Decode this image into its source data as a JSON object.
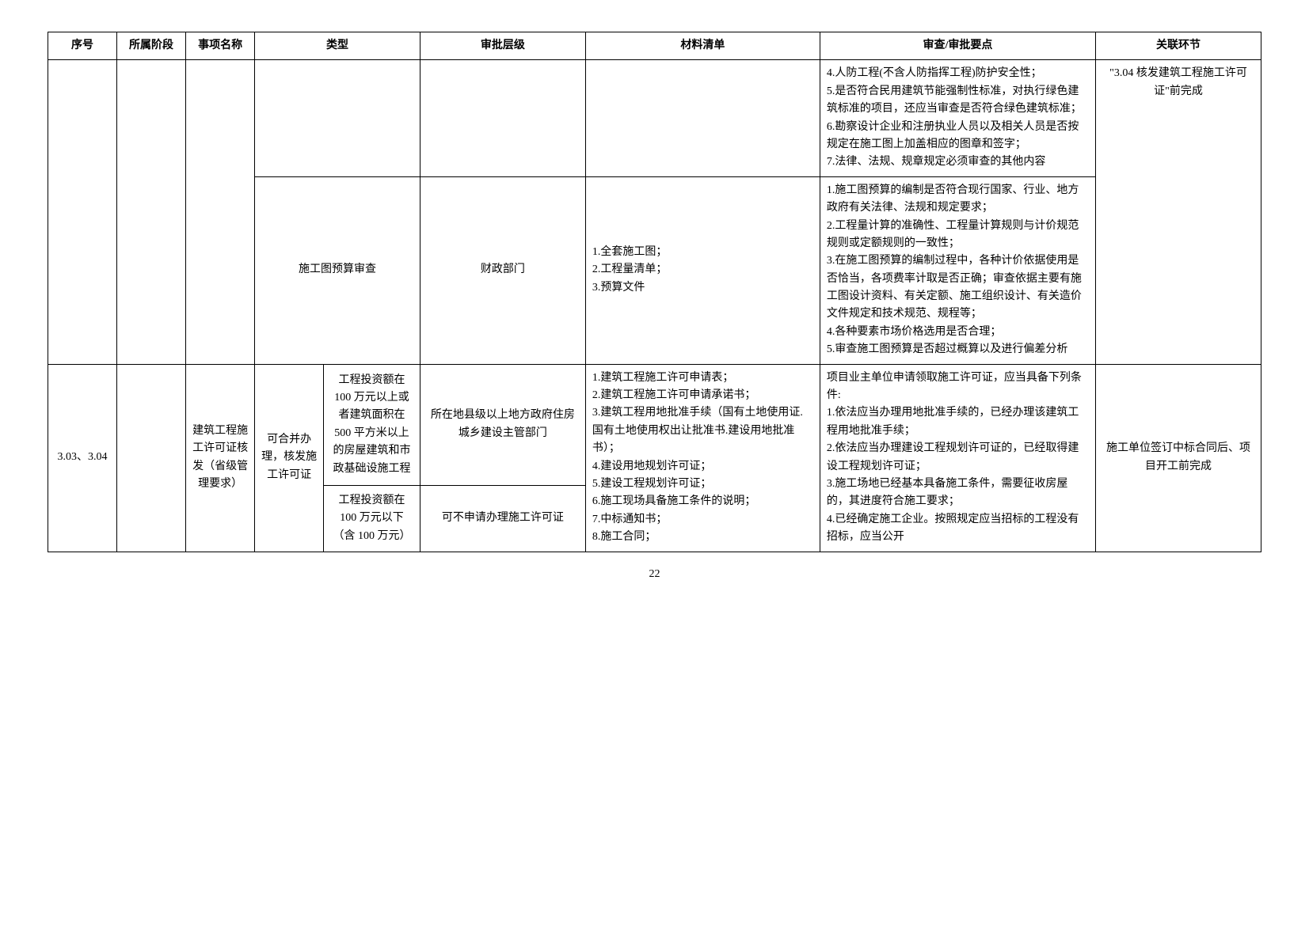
{
  "headers": {
    "seq": "序号",
    "phase": "所属阶段",
    "name": "事项名称",
    "type": "类型",
    "level": "审批层级",
    "materials": "材料清单",
    "points": "审查/审批要点",
    "related": "关联环节"
  },
  "rows": {
    "row1": {
      "points": "4.人防工程(不含人防指挥工程)防护安全性；\n5.是否符合民用建筑节能强制性标准，对执行绿色建筑标准的项目，还应当审查是否符合绿色建筑标准；\n6.勘察设计企业和注册执业人员以及相关人员是否按规定在施工图上加盖相应的图章和签字；\n7.法律、法规、规章规定必须审查的其他内容",
      "related": "\"3.04 核发建筑工程施工许可证\"前完成"
    },
    "row2": {
      "type": "施工图预算审查",
      "level": "财政部门",
      "materials": "1.全套施工图；\n2.工程量清单；\n3.预算文件",
      "points": "1.施工图预算的编制是否符合现行国家、行业、地方政府有关法律、法规和规定要求；\n2.工程量计算的准确性、工程量计算规则与计价规范规则或定额规则的一致性；\n3.在施工图预算的编制过程中，各种计价依据使用是否恰当，各项费率计取是否正确；审查依据主要有施工图设计资料、有关定额、施工组织设计、有关造价文件规定和技术规范、规程等；\n4.各种要素市场价格选用是否合理；\n5.审查施工图预算是否超过概算以及进行偏差分析"
    },
    "row3": {
      "seq": "3.03、3.04",
      "name": "建筑工程施工许可证核发（省级管理要求）",
      "type1": "可合并办理，核发施工许可证",
      "type2a": "工程投资额在 100 万元以上或者建筑面积在500 平方米以上的房屋建筑和市政基础设施工程",
      "level_a": "所在地县级以上地方政府住房城乡建设主管部门",
      "type2b": "工程投资额在 100 万元以下（含 100 万元）",
      "level_b": "可不申请办理施工许可证",
      "materials": "1.建筑工程施工许可申请表；\n2.建筑工程施工许可申请承诺书；\n3.建筑工程用地批准手续（国有土地使用证.国有土地使用权出让批准书.建设用地批准书）；\n4.建设用地规划许可证；\n5.建设工程规划许可证；\n6.施工现场具备施工条件的说明；\n7.中标通知书；\n8.施工合同；",
      "points": "项目业主单位申请领取施工许可证，应当具备下列条件:\n1.依法应当办理用地批准手续的，已经办理该建筑工程用地批准手续；\n2.依法应当办理建设工程规划许可证的，已经取得建设工程规划许可证；\n3.施工场地已经基本具备施工条件，需要征收房屋的，其进度符合施工要求；\n4.已经确定施工企业。按照规定应当招标的工程没有招标，应当公开",
      "related": "施工单位签订中标合同后、项目开工前完成"
    }
  },
  "pageNumber": "22"
}
